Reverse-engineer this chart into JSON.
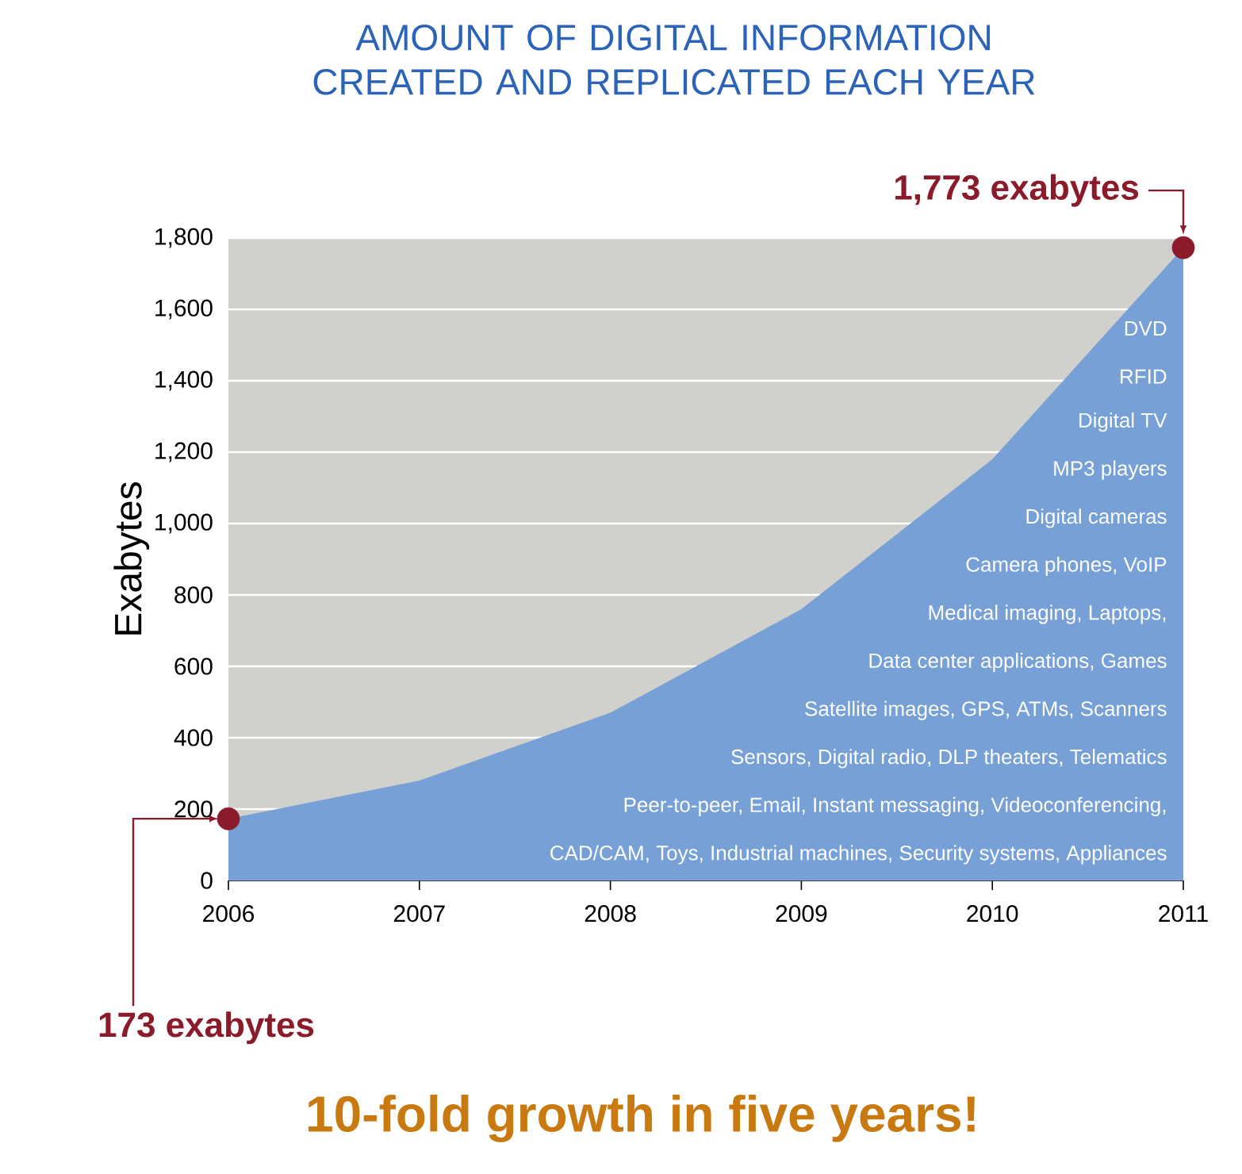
{
  "chart_data": {
    "type": "area",
    "title": "AMOUNT OF DIGITAL INFORMATION CREATED AND REPLICATED EACH YEAR",
    "ylabel": "Exabytes",
    "x": [
      2006,
      2007,
      2008,
      2009,
      2010,
      2011
    ],
    "series": [
      {
        "color": "#76a0d6",
        "values": [
          173,
          280,
          470,
          760,
          1180,
          1773
        ]
      },
      {
        "type": "scatter",
        "color": "#8b1a2a",
        "x": [
          2006,
          2011
        ],
        "values": [
          173,
          1773
        ]
      }
    ],
    "xlim": [
      2006,
      2011
    ],
    "xticks": [
      2006,
      2007,
      2008,
      2009,
      2010,
      2011
    ],
    "ylim": [
      0,
      1800
    ],
    "yticks": [
      0,
      200,
      400,
      600,
      800,
      {
        "value": 1000,
        "label": "1,000"
      },
      {
        "value": 1200,
        "label": "1,200"
      },
      {
        "value": 1400,
        "label": "1,400"
      },
      {
        "value": 1600,
        "label": "1,600"
      },
      {
        "value": 1800,
        "label": "1,800"
      }
    ],
    "grid": "y",
    "annotations": [
      "173 exabytes",
      "1,773 exabytes",
      "DVD",
      "RFID",
      "Digital TV",
      "MP3 players",
      "Digital cameras",
      "Camera phones, VoIP",
      "Medical imaging, Laptops,",
      "Data center applications, Games",
      "Satellite images, GPS, ATMs, Scanners",
      "Sensors, Digital radio, DLP theaters, Telematics",
      "Peer-to-peer, Email, Instant messaging, Videoconferencing,",
      "CAD/CAM, Toys, Industrial machines, Security systems, Appliances",
      "10-fold growth in five years!"
    ]
  }
}
